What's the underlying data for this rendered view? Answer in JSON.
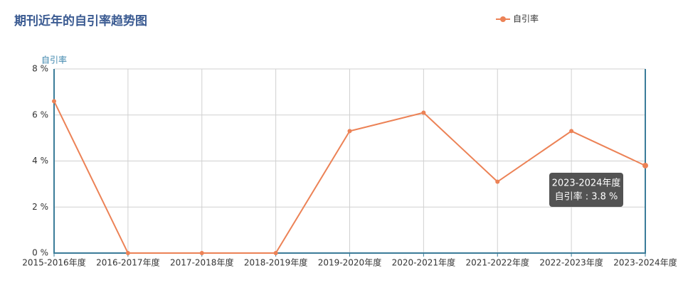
{
  "chart_data": {
    "type": "line",
    "title": "期刊近年的自引率趋势图",
    "y_label": "自引率",
    "categories": [
      "2015-2016年度",
      "2016-2017年度",
      "2017-2018年度",
      "2018-2019年度",
      "2019-2020年度",
      "2020-2021年度",
      "2021-2022年度",
      "2022-2023年度",
      "2023-2024年度"
    ],
    "series": [
      {
        "name": "自引率",
        "color": "#ec8256",
        "values": [
          6.6,
          0,
          0,
          0,
          5.3,
          6.1,
          3.1,
          5.3,
          3.8
        ]
      }
    ],
    "ylim": [
      0,
      8
    ],
    "yticks": [
      {
        "value": 0,
        "label": "0 %"
      },
      {
        "value": 2,
        "label": "2 %"
      },
      {
        "value": 4,
        "label": "4 %"
      },
      {
        "value": 6,
        "label": "6 %"
      },
      {
        "value": 8,
        "label": "8 %"
      }
    ],
    "grid": true,
    "legend": "top-right",
    "tooltip": {
      "title": "2023-2024年度",
      "text": "自引率 : 3.8 %"
    }
  }
}
